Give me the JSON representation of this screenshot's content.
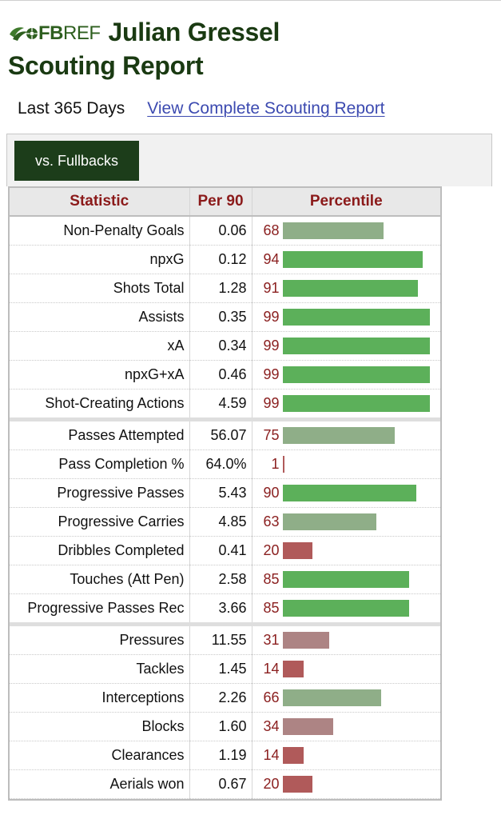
{
  "header": {
    "logo_fb": "FB",
    "logo_ref": "REF",
    "player_name": "Julian Gressel",
    "report_title": "Scouting Report"
  },
  "period": {
    "label": "Last 365 Days",
    "link": "View Complete Scouting Report"
  },
  "tabs": [
    {
      "label": "vs. Fullbacks",
      "active": true
    }
  ],
  "table": {
    "headers": [
      "Statistic",
      "Per 90",
      "Percentile"
    ],
    "colors": {
      "high": "#5cb05a",
      "mid_high": "#8fae88",
      "mid_low": "#ad8484",
      "low": "#b05a5a",
      "header_text": "#8b1a1a",
      "tab_bg": "#1c3d1a"
    },
    "groups": [
      [
        {
          "stat": "Non-Penalty Goals",
          "per90": "0.06",
          "percentile": 68
        },
        {
          "stat": "npxG",
          "per90": "0.12",
          "percentile": 94
        },
        {
          "stat": "Shots Total",
          "per90": "1.28",
          "percentile": 91
        },
        {
          "stat": "Assists",
          "per90": "0.35",
          "percentile": 99
        },
        {
          "stat": "xA",
          "per90": "0.34",
          "percentile": 99
        },
        {
          "stat": "npxG+xA",
          "per90": "0.46",
          "percentile": 99
        },
        {
          "stat": "Shot-Creating Actions",
          "per90": "4.59",
          "percentile": 99
        }
      ],
      [
        {
          "stat": "Passes Attempted",
          "per90": "56.07",
          "percentile": 75
        },
        {
          "stat": "Pass Completion %",
          "per90": "64.0%",
          "percentile": 1
        },
        {
          "stat": "Progressive Passes",
          "per90": "5.43",
          "percentile": 90
        },
        {
          "stat": "Progressive Carries",
          "per90": "4.85",
          "percentile": 63
        },
        {
          "stat": "Dribbles Completed",
          "per90": "0.41",
          "percentile": 20
        },
        {
          "stat": "Touches (Att Pen)",
          "per90": "2.58",
          "percentile": 85
        },
        {
          "stat": "Progressive Passes Rec",
          "per90": "3.66",
          "percentile": 85
        }
      ],
      [
        {
          "stat": "Pressures",
          "per90": "11.55",
          "percentile": 31
        },
        {
          "stat": "Tackles",
          "per90": "1.45",
          "percentile": 14
        },
        {
          "stat": "Interceptions",
          "per90": "2.26",
          "percentile": 66
        },
        {
          "stat": "Blocks",
          "per90": "1.60",
          "percentile": 34
        },
        {
          "stat": "Clearances",
          "per90": "1.19",
          "percentile": 14
        },
        {
          "stat": "Aerials won",
          "per90": "0.67",
          "percentile": 20
        }
      ]
    ]
  }
}
